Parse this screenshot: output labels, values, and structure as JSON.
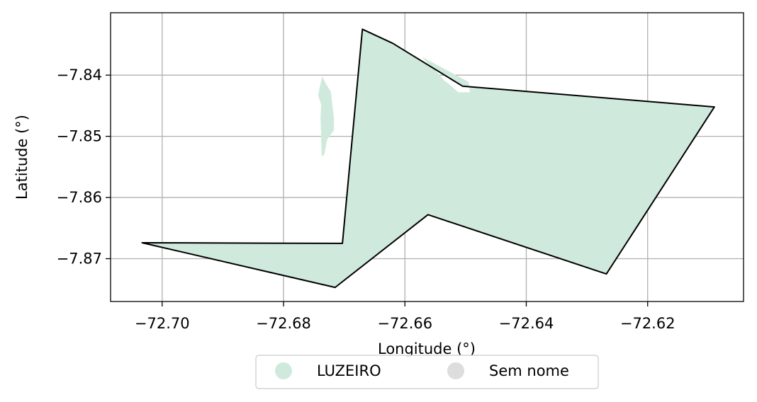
{
  "chart_data": {
    "type": "map",
    "xlabel": "Longitude (°)",
    "ylabel": "Latitude (°)",
    "xlim": [
      -72.7085,
      -72.6042
    ],
    "ylim": [
      -7.877,
      -7.8298
    ],
    "xticks": [
      -72.7,
      -72.68,
      -72.66,
      -72.64,
      -72.62
    ],
    "xtick_labels": [
      "−72.70",
      "−72.68",
      "−72.66",
      "−72.64",
      "−72.62"
    ],
    "yticks": [
      -7.84,
      -7.85,
      -7.86,
      -7.87
    ],
    "ytick_labels": [
      "−7.84",
      "−7.85",
      "−7.86",
      "−7.87"
    ],
    "grid": true,
    "legend_position": "bottom-center, below axes",
    "regions": [
      {
        "name": "LUZEIRO",
        "color": "#cfeadc",
        "boundary": [
          [
            -72.6703,
            -7.8675
          ],
          [
            -72.667,
            -7.8325
          ],
          [
            -72.662,
            -7.8348
          ],
          [
            -72.6505,
            -7.8418
          ],
          [
            -72.609,
            -7.8452
          ],
          [
            -72.6268,
            -7.8725
          ],
          [
            -72.6562,
            -7.8628
          ],
          [
            -72.6715,
            -7.8747
          ],
          [
            -72.7033,
            -7.8674
          ]
        ]
      }
    ],
    "holes": [
      [
        [
          -72.6736,
          -7.8402
        ],
        [
          -72.6731,
          -7.8413
        ],
        [
          -72.6722,
          -7.8427
        ],
        [
          -72.672,
          -7.8445
        ],
        [
          -72.6717,
          -7.847
        ],
        [
          -72.6717,
          -7.849
        ],
        [
          -72.6728,
          -7.8505
        ],
        [
          -72.6733,
          -7.853
        ],
        [
          -72.6737,
          -7.8533
        ],
        [
          -72.6738,
          -7.8505
        ],
        [
          -72.6739,
          -7.847
        ],
        [
          -72.6738,
          -7.8448
        ],
        [
          -72.6743,
          -7.8433
        ],
        [
          -72.674,
          -7.8418
        ]
      ],
      [
        [
          -72.6572,
          -7.837
        ],
        [
          -72.6495,
          -7.8411
        ],
        [
          -72.6493,
          -7.8428
        ],
        [
          -72.6512,
          -7.8428
        ],
        [
          -72.652,
          -7.8421
        ],
        [
          -72.6528,
          -7.8414
        ],
        [
          -72.6536,
          -7.8408
        ],
        [
          -72.6545,
          -7.8397
        ],
        [
          -72.6552,
          -7.839
        ],
        [
          -72.656,
          -7.8383
        ],
        [
          -72.6565,
          -7.8378
        ]
      ]
    ],
    "legend": [
      {
        "label": "LUZEIRO",
        "color": "#cfeadc"
      },
      {
        "label": "Sem nome",
        "color": "#dddddd"
      }
    ]
  }
}
